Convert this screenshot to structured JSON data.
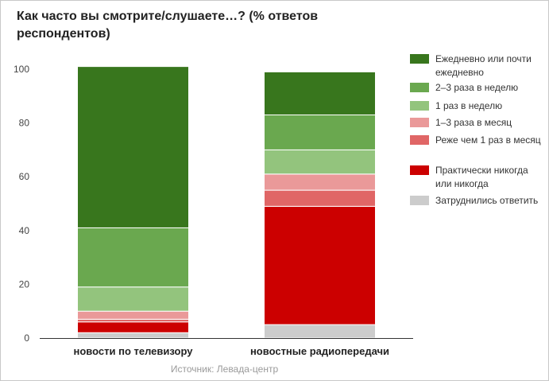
{
  "title": "Как часто вы смотрите/слушаете…? (% ответов респондентов)",
  "source": "Источник: Левада-центр",
  "chart_data": {
    "type": "bar",
    "stacked": true,
    "title": "Как часто вы смотрите/слушаете…? (% ответов респондентов)",
    "categories": [
      "новости по телевизору",
      "новостные радиопередачи"
    ],
    "ylim": [
      0,
      100
    ],
    "yticks": [
      0,
      20,
      40,
      60,
      80,
      100
    ],
    "grid": false,
    "legend_position": "right",
    "series": [
      {
        "name": "Затруднились ответить",
        "color": "#cccccc",
        "values": [
          2,
          5
        ]
      },
      {
        "name": "Практически никогда или никогда",
        "color": "#cc0000",
        "values": [
          4,
          44
        ]
      },
      {
        "name": "Реже чем 1 раз в месяц",
        "color": "#e06666",
        "values": [
          1,
          6
        ]
      },
      {
        "name": "1–3 раза в месяц",
        "color": "#ea9999",
        "values": [
          3,
          6
        ]
      },
      {
        "name": "1 раз в неделю",
        "color": "#93c47d",
        "values": [
          9,
          9
        ]
      },
      {
        "name": "2–3 раза в неделю",
        "color": "#6aa84f",
        "values": [
          22,
          13
        ]
      },
      {
        "name": "Ежедневно или почти ежедневно",
        "color": "#38761d",
        "values": [
          60,
          16
        ]
      }
    ],
    "legend_order": [
      "Ежедневно или почти ежедневно",
      "2–3 раза в неделю",
      "1 раз в неделю",
      "1–3 раза в месяц",
      "Реже чем 1 раз в месяц",
      "Практически никогда или никогда",
      "Затруднились ответить"
    ]
  }
}
